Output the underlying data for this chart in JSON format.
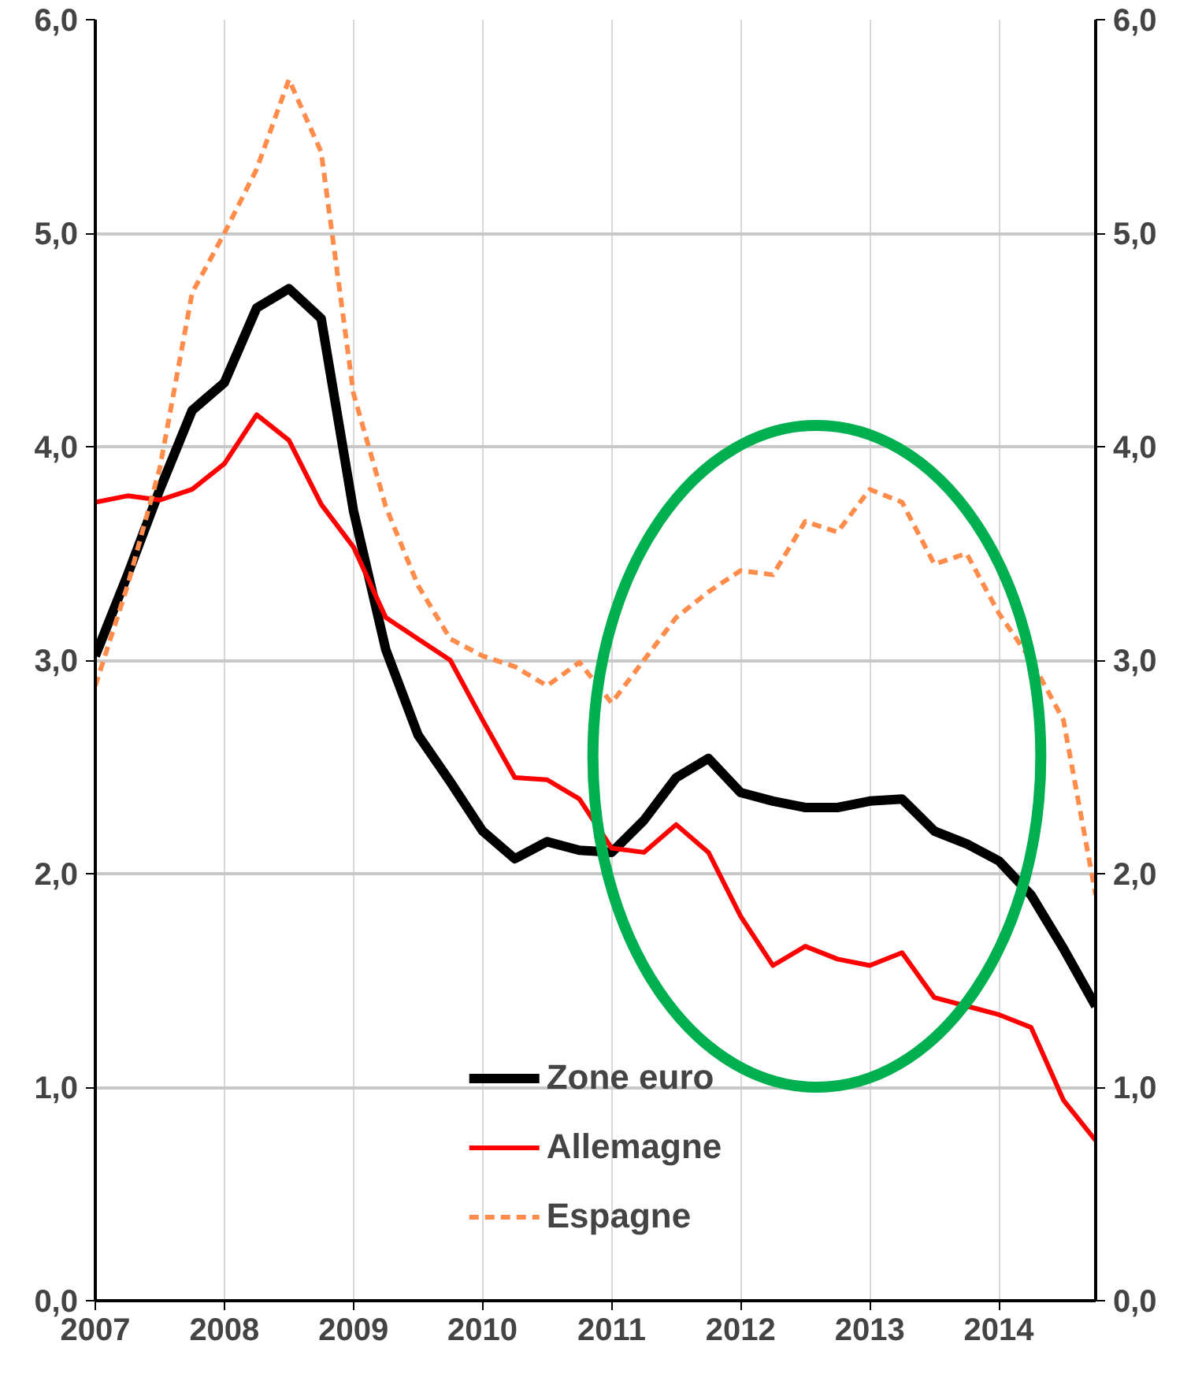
{
  "chart_data": {
    "type": "line",
    "x": [
      2007.0,
      2007.25,
      2007.5,
      2007.75,
      2008.0,
      2008.25,
      2008.5,
      2008.75,
      2009.0,
      2009.25,
      2009.5,
      2009.75,
      2010.0,
      2010.25,
      2010.5,
      2010.75,
      2011.0,
      2011.25,
      2011.5,
      2011.75,
      2012.0,
      2012.25,
      2012.5,
      2012.75,
      2013.0,
      2013.25,
      2013.5,
      2013.75,
      2014.0,
      2014.25,
      2014.5,
      2014.75
    ],
    "series": [
      {
        "name": "Zone euro",
        "color": "#000000",
        "values": [
          3.02,
          3.4,
          3.8,
          4.17,
          4.3,
          4.65,
          4.74,
          4.6,
          3.7,
          3.05,
          2.65,
          2.43,
          2.2,
          2.07,
          2.15,
          2.11,
          2.1,
          2.25,
          2.45,
          2.54,
          2.38,
          2.34,
          2.31,
          2.31,
          2.34,
          2.35,
          2.2,
          2.14,
          2.06,
          1.9,
          1.65,
          1.38
        ]
      },
      {
        "name": "Allemagne",
        "color": "#ff0000",
        "values": [
          3.74,
          3.77,
          3.75,
          3.8,
          3.92,
          4.15,
          4.03,
          3.73,
          3.53,
          3.2,
          3.1,
          3.0,
          2.72,
          2.45,
          2.44,
          2.35,
          2.12,
          2.1,
          2.23,
          2.1,
          1.8,
          1.57,
          1.66,
          1.6,
          1.57,
          1.63,
          1.42,
          1.38,
          1.34,
          1.28,
          0.94,
          0.75
        ]
      },
      {
        "name": "Espagne",
        "color": "#ff8c4a",
        "line_style": "dashed",
        "values": [
          2.88,
          3.35,
          3.9,
          4.72,
          5.0,
          5.3,
          5.72,
          5.38,
          4.25,
          3.72,
          3.35,
          3.1,
          3.02,
          2.97,
          2.88,
          2.99,
          2.8,
          3.0,
          3.2,
          3.32,
          3.42,
          3.4,
          3.65,
          3.6,
          3.8,
          3.74,
          3.45,
          3.5,
          3.22,
          3.0,
          2.72,
          1.9
        ]
      }
    ],
    "xlim": [
      2007,
      2014.75
    ],
    "xticks": [
      2007,
      2008,
      2009,
      2010,
      2011,
      2012,
      2013,
      2014
    ],
    "ylim": [
      0,
      6
    ],
    "yticks": [
      {
        "value": 0,
        "label": "0,0"
      },
      {
        "value": 1,
        "label": "1,0"
      },
      {
        "value": 2,
        "label": "2,0"
      },
      {
        "value": 3,
        "label": "3,0"
      },
      {
        "value": 4,
        "label": "4,0"
      },
      {
        "value": 5,
        "label": "5,0"
      },
      {
        "value": 6,
        "label": "6,0"
      }
    ],
    "y2lim": [
      0,
      6
    ],
    "y2ticks": [
      {
        "value": 0,
        "label": "0,0"
      },
      {
        "value": 1,
        "label": "1,0"
      },
      {
        "value": 2,
        "label": "2,0"
      },
      {
        "value": 3,
        "label": "3,0"
      },
      {
        "value": 4,
        "label": "4,0"
      },
      {
        "value": 5,
        "label": "5,0"
      },
      {
        "value": 6,
        "label": "6,0"
      }
    ],
    "grid": true,
    "legend": "bottom",
    "line_style": "solid",
    "marker": "none"
  }
}
